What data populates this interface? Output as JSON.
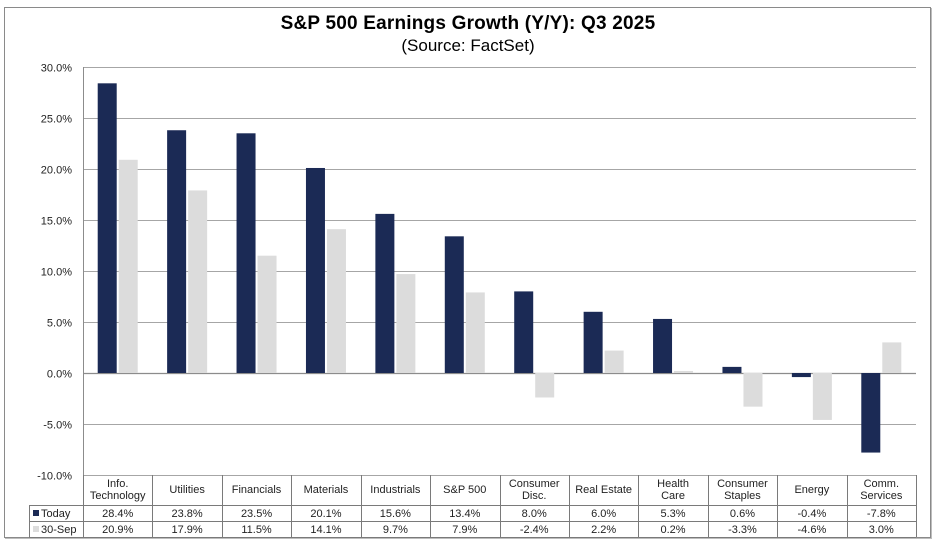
{
  "chart_data": {
    "type": "bar",
    "title": "S&P 500 Earnings Growth (Y/Y): Q3 2025",
    "subtitle": "(Source: FactSet)",
    "xlabel": "",
    "ylabel": "",
    "ylim": [
      -10,
      30
    ],
    "yticks": [
      30,
      25,
      20,
      15,
      10,
      5,
      0,
      -5,
      -10
    ],
    "ytick_labels": [
      "30.0%",
      "25.0%",
      "20.0%",
      "15.0%",
      "10.0%",
      "5.0%",
      "0.0%",
      "-5.0%",
      "-10.0%"
    ],
    "grid": true,
    "legend": "data-table-left",
    "categories": [
      [
        "Info.",
        "Technology"
      ],
      [
        "Utilities"
      ],
      [
        "Financials"
      ],
      [
        "Materials"
      ],
      [
        "Industrials"
      ],
      [
        "S&P 500"
      ],
      [
        "Consumer",
        "Disc."
      ],
      [
        "Real Estate"
      ],
      [
        "Health",
        "Care"
      ],
      [
        "Consumer",
        "Staples"
      ],
      [
        "Energy"
      ],
      [
        "Comm.",
        "Services"
      ]
    ],
    "series": [
      {
        "name": "Today",
        "color": "#1b2a55",
        "values": [
          28.4,
          23.8,
          23.5,
          20.1,
          15.6,
          13.4,
          8.0,
          6.0,
          5.3,
          0.6,
          -0.4,
          -7.8
        ],
        "labels": [
          "28.4%",
          "23.8%",
          "23.5%",
          "20.1%",
          "15.6%",
          "13.4%",
          "8.0%",
          "6.0%",
          "5.3%",
          "0.6%",
          "-0.4%",
          "-7.8%"
        ]
      },
      {
        "name": "30-Sep",
        "color": "#dcdcdc",
        "values": [
          20.9,
          17.9,
          11.5,
          14.1,
          9.7,
          7.9,
          -2.4,
          2.2,
          0.2,
          -3.3,
          -4.6,
          3.0
        ],
        "labels": [
          "20.9%",
          "17.9%",
          "11.5%",
          "14.1%",
          "9.7%",
          "7.9%",
          "-2.4%",
          "2.2%",
          "0.2%",
          "-3.3%",
          "-4.6%",
          "3.0%"
        ]
      }
    ]
  }
}
